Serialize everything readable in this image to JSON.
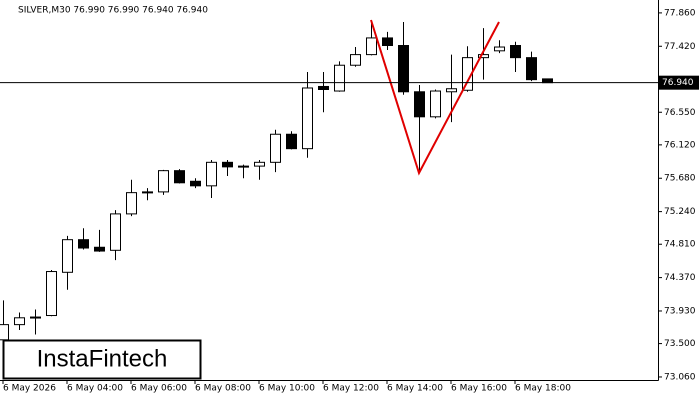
{
  "chart_data": {
    "type": "candlestick",
    "info": "SILVER,M30  76.990 76.990 76.940 76.940",
    "categories": [
      "6 May 2026",
      null,
      null,
      null,
      "6 May 04:00",
      null,
      null,
      null,
      "6 May 06:00",
      null,
      null,
      null,
      "6 May 08:00",
      null,
      null,
      null,
      "6 May 10:00",
      null,
      null,
      null,
      "6 May 12:00",
      null,
      null,
      null,
      "6 May 14:00",
      null,
      null,
      null,
      "6 May 16:00",
      null,
      null,
      null,
      "6 May 18:00",
      null,
      null
    ],
    "open": [
      73.55,
      73.75,
      73.84,
      73.87,
      74.44,
      74.87,
      74.77,
      74.73,
      75.21,
      75.49,
      75.5,
      75.78,
      75.64,
      75.58,
      75.89,
      75.83,
      75.84,
      75.89,
      76.26,
      76.07,
      76.89,
      76.83,
      77.17,
      77.31,
      77.53,
      77.43,
      76.82,
      76.49,
      76.82,
      76.84,
      77.27,
      77.36,
      77.43,
      77.27,
      76.99
    ],
    "high": [
      74.07,
      73.91,
      73.95,
      74.47,
      74.92,
      75.02,
      75.0,
      75.26,
      75.66,
      75.55,
      75.79,
      75.8,
      75.68,
      75.92,
      75.92,
      75.86,
      75.92,
      76.32,
      76.3,
      77.08,
      77.08,
      77.22,
      77.41,
      77.74,
      77.61,
      77.74,
      76.91,
      76.85,
      77.31,
      77.42,
      77.66,
      77.5,
      77.48,
      77.35,
      76.99
    ],
    "low": [
      73.48,
      73.68,
      73.62,
      73.86,
      74.21,
      74.74,
      74.71,
      74.6,
      75.18,
      75.39,
      75.46,
      75.61,
      75.55,
      75.42,
      75.71,
      75.68,
      75.66,
      75.76,
      76.06,
      75.95,
      76.55,
      76.82,
      77.15,
      77.3,
      77.37,
      76.78,
      75.76,
      76.47,
      76.42,
      76.82,
      76.98,
      77.33,
      77.08,
      76.96,
      76.94
    ],
    "close": [
      73.75,
      73.84,
      73.85,
      74.45,
      74.87,
      74.76,
      74.72,
      75.21,
      75.49,
      75.5,
      75.78,
      75.62,
      75.58,
      75.89,
      75.83,
      75.84,
      75.89,
      76.26,
      76.07,
      76.87,
      76.85,
      77.17,
      77.31,
      77.53,
      77.43,
      76.82,
      76.49,
      76.83,
      76.86,
      77.27,
      77.31,
      77.41,
      77.27,
      76.98,
      76.94
    ],
    "ylim": [
      73.02,
      78.03
    ],
    "yticks": [
      {
        "value": 77.86,
        "label": "77.860"
      },
      {
        "value": 77.42,
        "label": "77.420"
      },
      {
        "value": 76.55,
        "label": "76.550"
      },
      {
        "value": 76.12,
        "label": "76.120"
      },
      {
        "value": 75.68,
        "label": "75.680"
      },
      {
        "value": 75.24,
        "label": "75.240"
      },
      {
        "value": 74.81,
        "label": "74.810"
      },
      {
        "value": 74.37,
        "label": "74.370"
      },
      {
        "value": 73.93,
        "label": "73.930"
      },
      {
        "value": 73.5,
        "label": "73.500"
      },
      {
        "value": 73.06,
        "label": "73.060"
      }
    ],
    "last_price": {
      "value": 76.94,
      "label": "76.940"
    },
    "logo": "InstaFintech"
  }
}
